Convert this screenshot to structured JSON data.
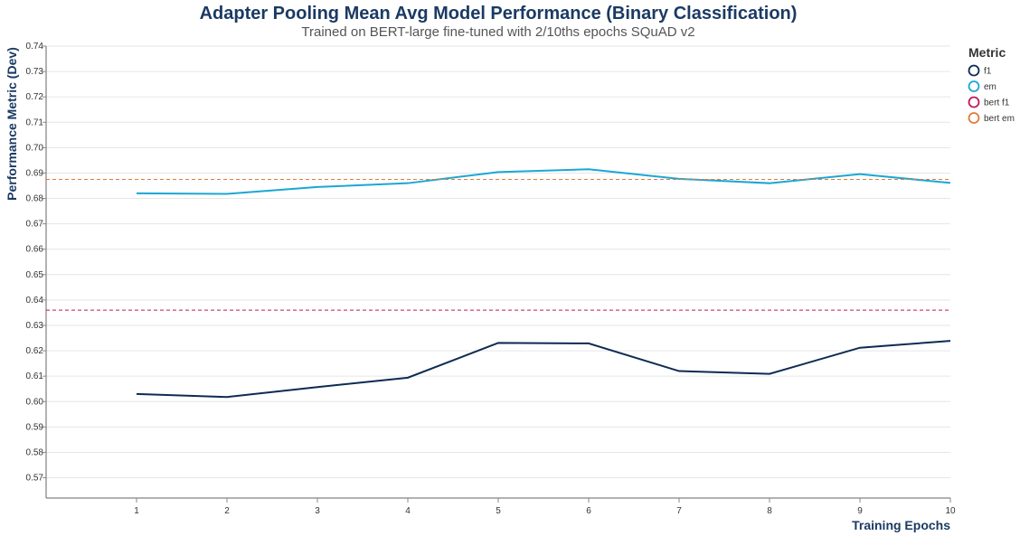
{
  "chart_data": {
    "type": "line",
    "title": "Adapter Pooling Mean Avg Model Performance (Binary Classification)",
    "subtitle": "Trained on BERT-large fine-tuned with 2/10ths epochs SQuAD v2",
    "xlabel": "Training Epochs",
    "ylabel": "Performance Metric (Dev)",
    "x": [
      1,
      2,
      3,
      4,
      5,
      6,
      7,
      8,
      9,
      10
    ],
    "xlim": [
      0,
      10
    ],
    "ylim": [
      0.562,
      0.74
    ],
    "yticks": [
      0.57,
      0.58,
      0.59,
      0.6,
      0.61,
      0.62,
      0.63,
      0.64,
      0.65,
      0.66,
      0.67,
      0.68,
      0.69,
      0.7,
      0.71,
      0.72,
      0.73,
      0.74
    ],
    "grid": true,
    "legend_title": "Metric",
    "legend_position": "right",
    "series": [
      {
        "name": "f1",
        "color": "#0d2b52",
        "dashed": false,
        "values": [
          0.603,
          0.6018,
          0.6057,
          0.6094,
          0.6231,
          0.6229,
          0.612,
          0.6109,
          0.6212,
          0.6239
        ]
      },
      {
        "name": "em",
        "color": "#1ba7d4",
        "dashed": false,
        "values": [
          0.682,
          0.6818,
          0.6845,
          0.686,
          0.6904,
          0.6915,
          0.6877,
          0.686,
          0.6896,
          0.6861
        ]
      },
      {
        "name": "bert f1",
        "color": "#c2185b",
        "dashed": true,
        "constant": 0.636
      },
      {
        "name": "bert em",
        "color": "#e07b39",
        "dashed": true,
        "constant": 0.6875
      }
    ]
  }
}
